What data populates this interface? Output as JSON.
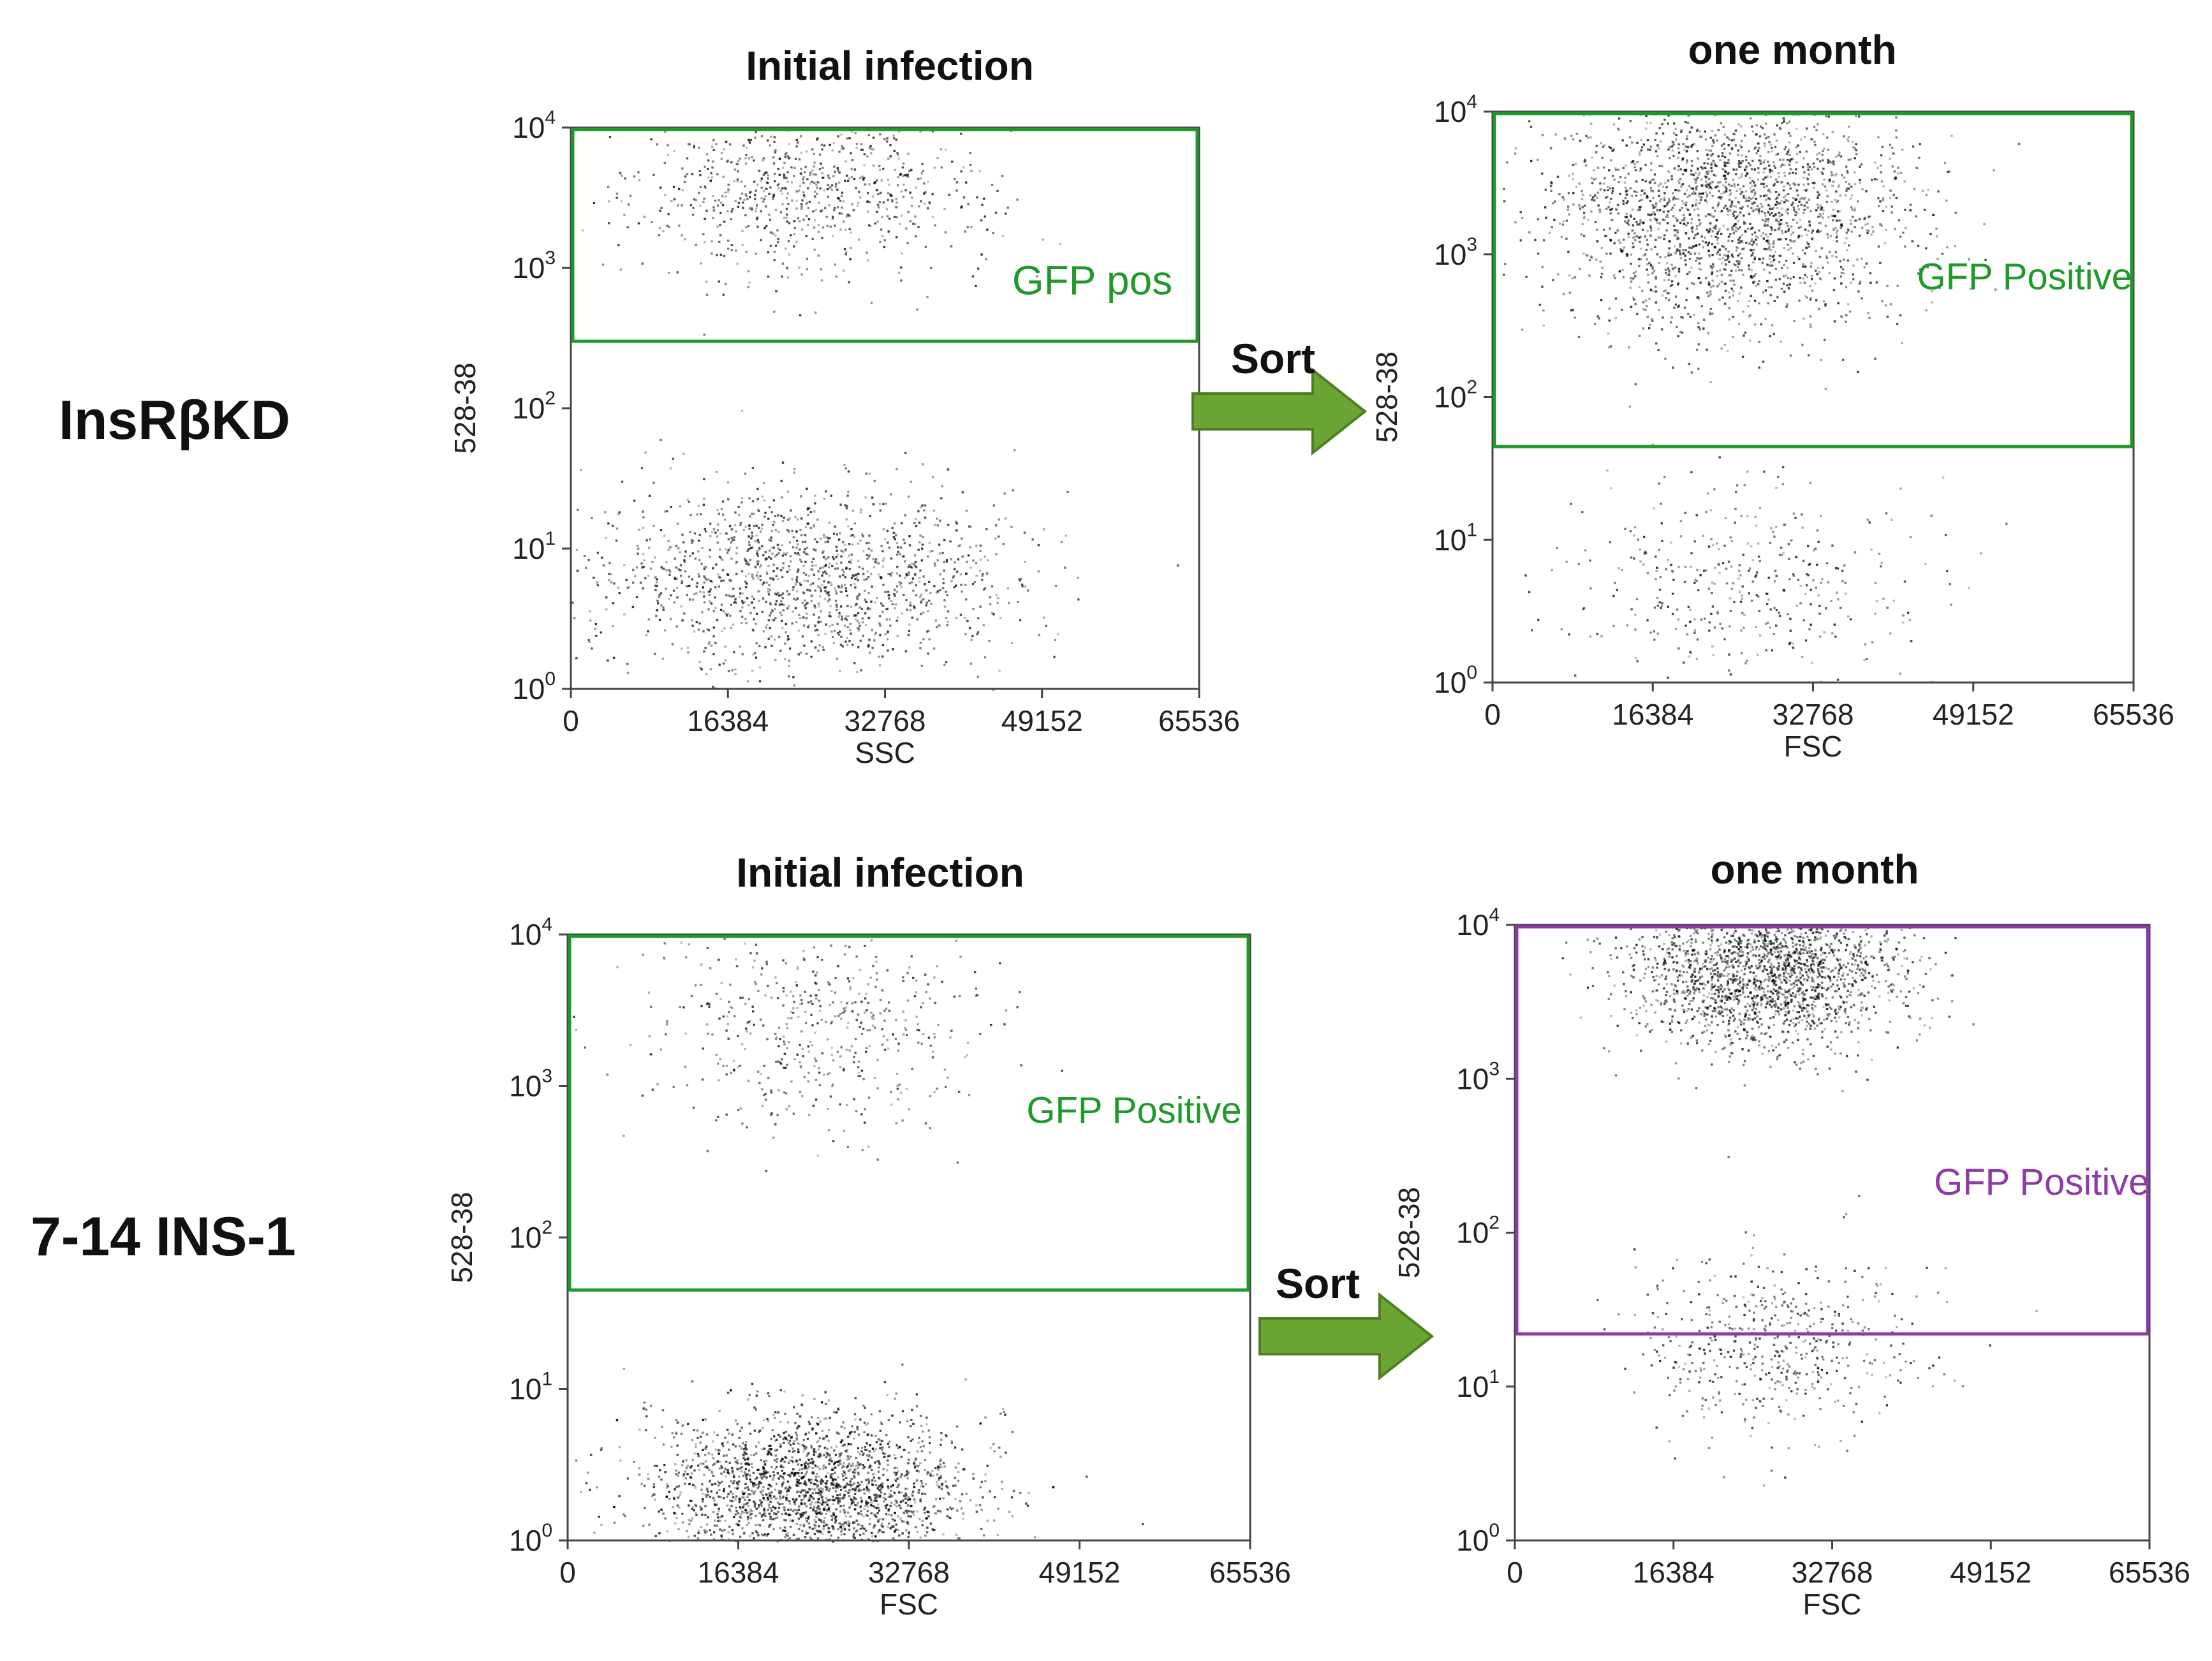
{
  "figure": {
    "row_labels": [
      "InsRβKD",
      "7-14 INS-1"
    ],
    "sort_label": "Sort",
    "arrow_color": "#6aa533"
  },
  "chart_data": [
    {
      "type": "scatter",
      "title": "Initial infection",
      "xlabel": "SSC",
      "ylabel": "528-38",
      "xlim": [
        0,
        65536
      ],
      "ylim": [
        1,
        10000
      ],
      "yscale": "log",
      "xticks": [
        0,
        16384,
        32768,
        49152,
        65536
      ],
      "yticks": [
        "10^0",
        "10^1",
        "10^2",
        "10^3",
        "10^4"
      ],
      "gate": {
        "label": "GFP pos",
        "color": "#1f9a2a",
        "x_range": [
          0,
          65536
        ],
        "y_range": [
          300,
          10000
        ]
      },
      "populations": [
        {
          "name": "GFP positive cluster",
          "center": [
            24000,
            3500
          ],
          "x_spread": 9000,
          "y_spread_log": 0.3,
          "density": 0.3
        },
        {
          "name": "GFP negative cluster",
          "center": [
            24000,
            6
          ],
          "x_spread": 11000,
          "y_spread_log": 0.32,
          "density": 0.55
        }
      ]
    },
    {
      "type": "scatter",
      "title": "one month",
      "xlabel": "FSC",
      "ylabel": "528-38",
      "xlim": [
        0,
        65536
      ],
      "ylim": [
        1,
        10000
      ],
      "yscale": "log",
      "xticks": [
        0,
        16384,
        32768,
        49152,
        65536
      ],
      "yticks": [
        "10^0",
        "10^1",
        "10^2",
        "10^3",
        "10^4"
      ],
      "gate": {
        "label": "GFP Positive",
        "color": "#1f9a2a",
        "x_range": [
          0,
          65536
        ],
        "y_range": [
          45,
          10000
        ]
      },
      "populations": [
        {
          "name": "GFP positive cluster",
          "center": [
            24000,
            2000
          ],
          "x_spread": 9000,
          "y_spread_log": 0.4,
          "density": 0.85
        },
        {
          "name": "GFP negative cluster",
          "center": [
            26000,
            5
          ],
          "x_spread": 8000,
          "y_spread_log": 0.35,
          "density": 0.15
        }
      ]
    },
    {
      "type": "scatter",
      "title": "Initial infection",
      "xlabel": "FSC",
      "ylabel": "528-38",
      "xlim": [
        0,
        65536
      ],
      "ylim": [
        1,
        10000
      ],
      "yscale": "log",
      "xticks": [
        0,
        16384,
        32768,
        49152,
        65536
      ],
      "yticks": [
        "10^0",
        "10^1",
        "10^2",
        "10^3",
        "10^4"
      ],
      "gate": {
        "label": "GFP Positive",
        "color": "#1f9a2a",
        "x_range": [
          0,
          65536
        ],
        "y_range": [
          45,
          10000
        ]
      },
      "populations": [
        {
          "name": "GFP positive cluster",
          "center": [
            24000,
            2500
          ],
          "x_spread": 8000,
          "y_spread_log": 0.35,
          "density": 0.2
        },
        {
          "name": "GFP negative cluster",
          "center": [
            23000,
            2.2
          ],
          "x_spread": 7500,
          "y_spread_log": 0.25,
          "density": 0.9
        }
      ]
    },
    {
      "type": "scatter",
      "title": "one month",
      "xlabel": "FSC",
      "ylabel": "528-38",
      "xlim": [
        0,
        65536
      ],
      "ylim": [
        1,
        10000
      ],
      "yscale": "log",
      "xticks": [
        0,
        16384,
        32768,
        49152,
        65536
      ],
      "yticks": [
        "10^0",
        "10^1",
        "10^2",
        "10^3",
        "10^4"
      ],
      "gate": {
        "label": "GFP Positive",
        "color": "#8e3aa8",
        "x_range": [
          0,
          65536
        ],
        "y_range": [
          22,
          10000
        ]
      },
      "populations": [
        {
          "name": "GFP positive cluster",
          "center": [
            26000,
            5000
          ],
          "x_spread": 7000,
          "y_spread_log": 0.25,
          "density": 0.8
        },
        {
          "name": "GFP negative cluster",
          "center": [
            27000,
            18
          ],
          "x_spread": 7000,
          "y_spread_log": 0.3,
          "density": 0.2
        }
      ]
    }
  ]
}
